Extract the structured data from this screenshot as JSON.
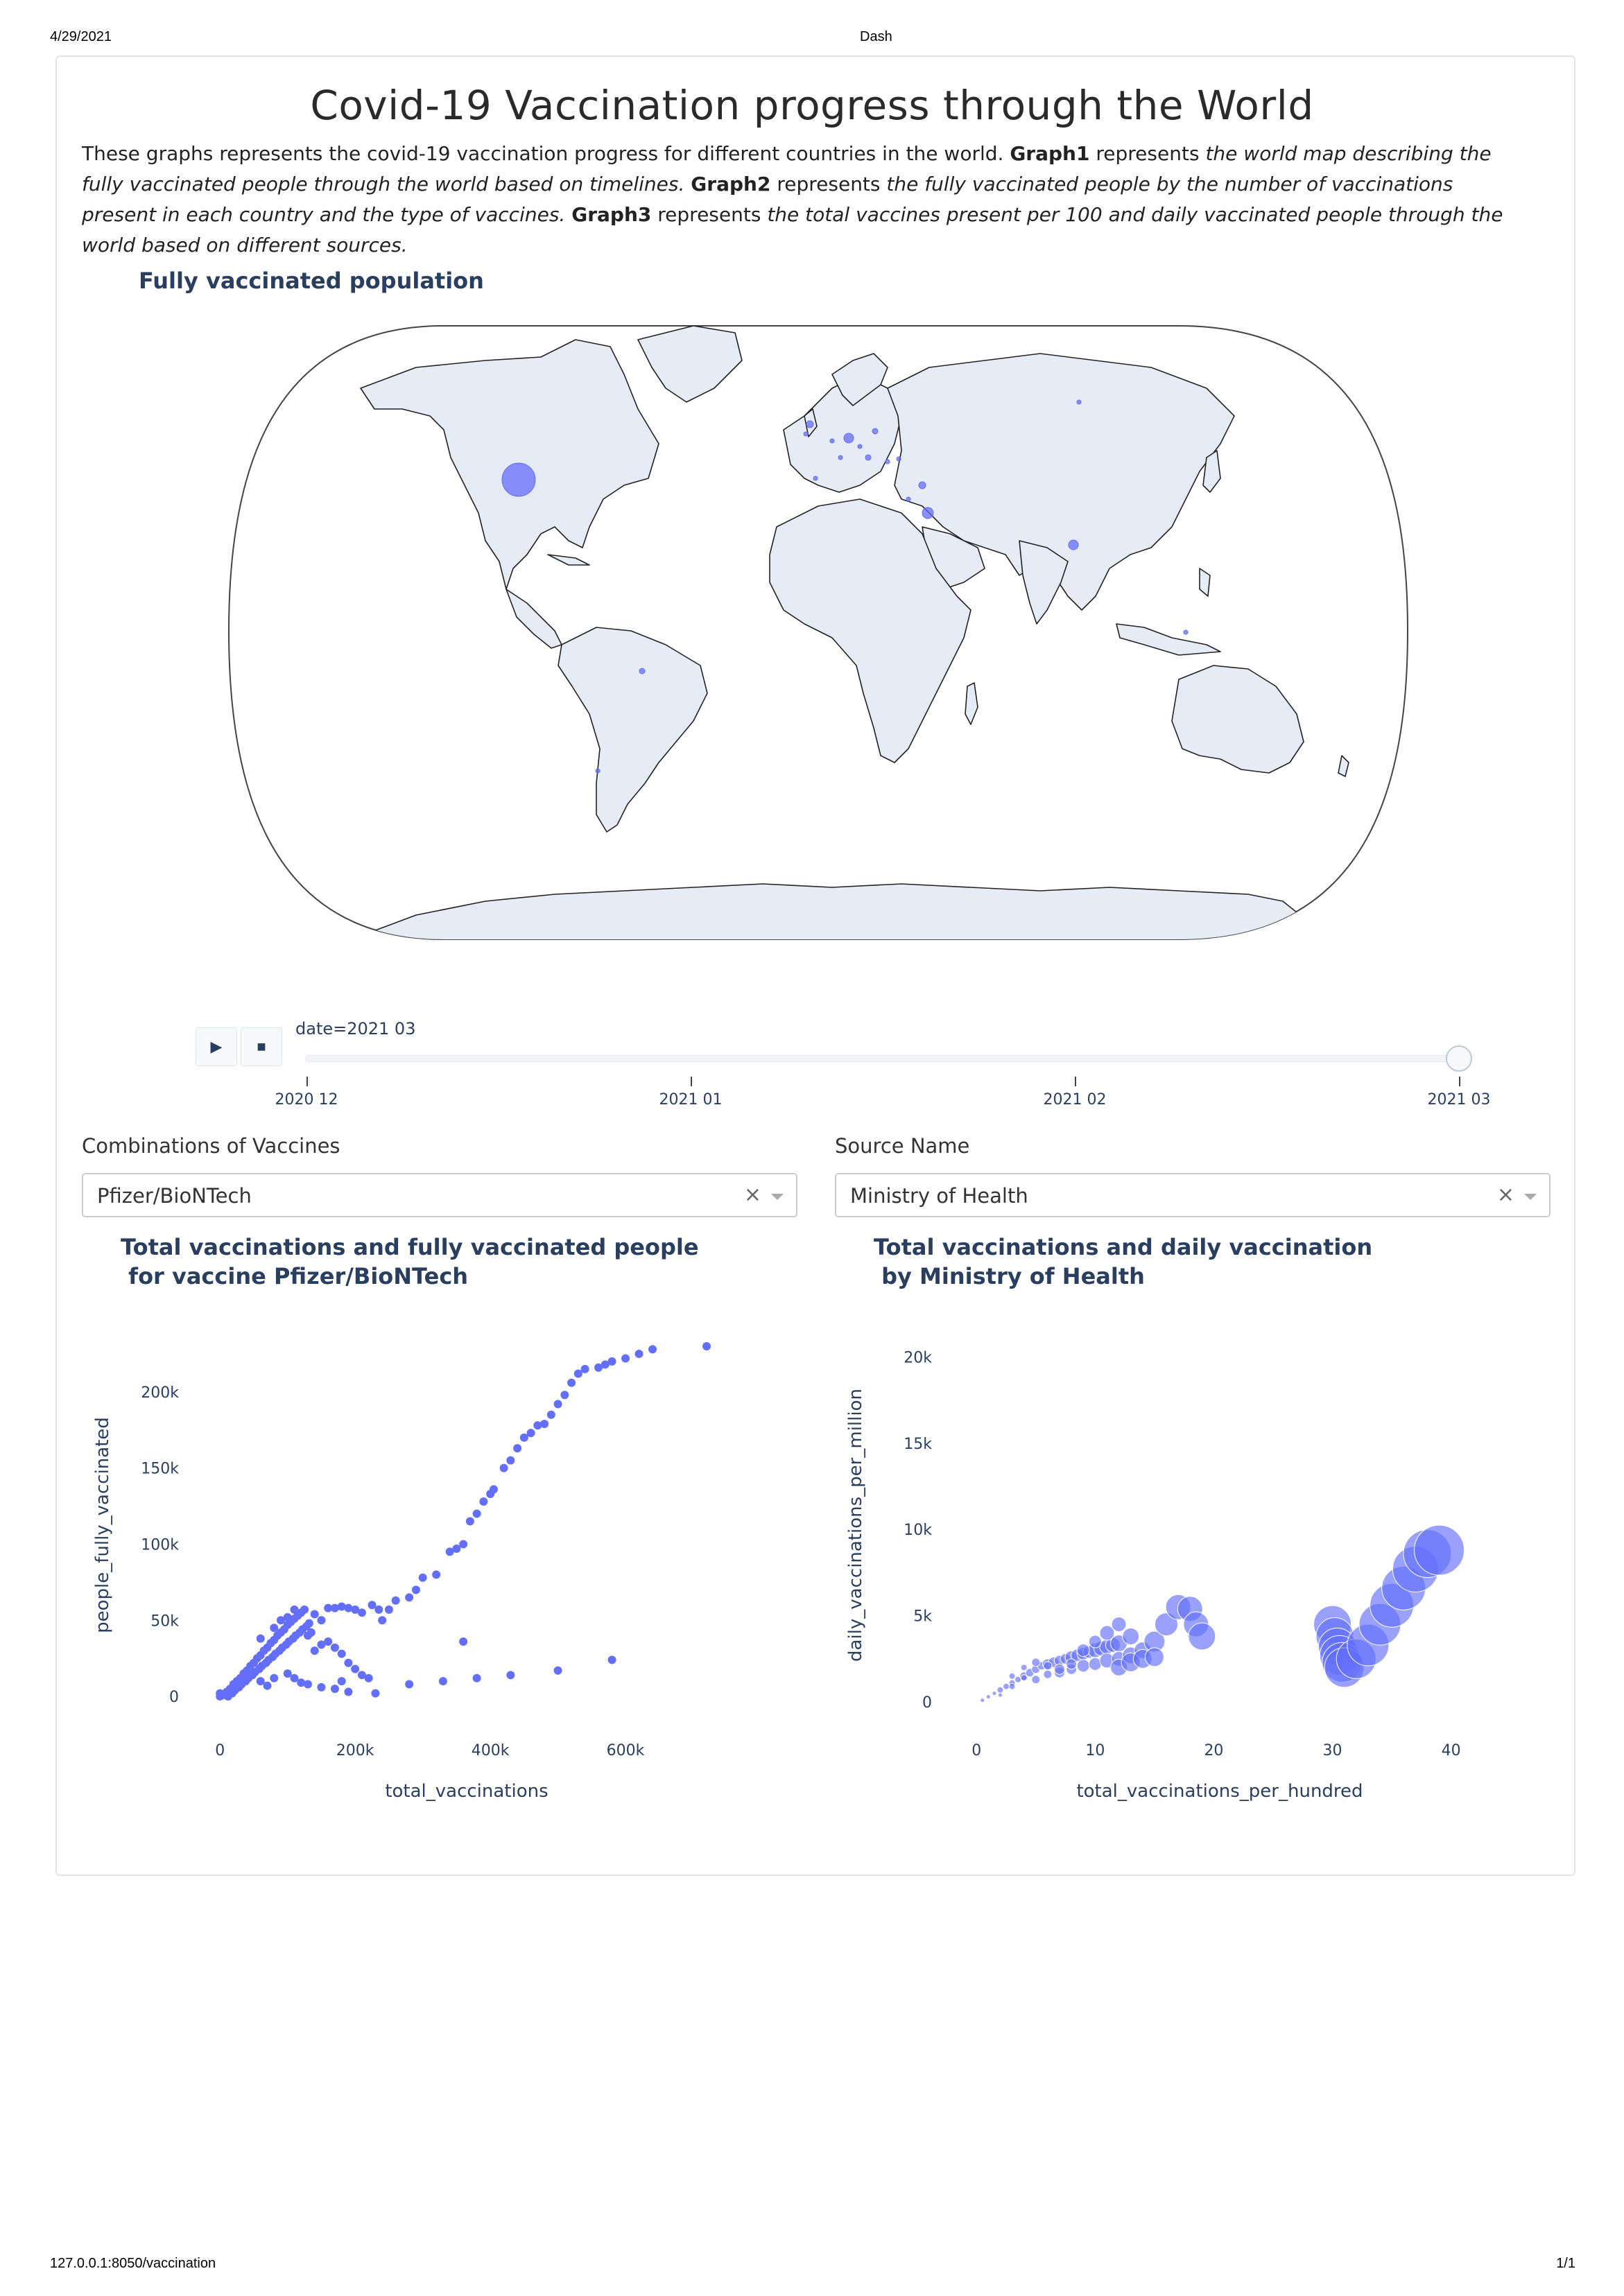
{
  "print": {
    "date": "4/29/2021",
    "tab_title": "Dash",
    "url": "127.0.0.1:8050/vaccination",
    "page": "1/1"
  },
  "header": {
    "title": "Covid-19 Vaccination progress through the World"
  },
  "intro": {
    "p1": "These graphs represents the covid-19 vaccination progress for different countries in the world. ",
    "g1": "Graph1",
    "p2": " represents ",
    "g1_desc": "the world map describing the fully vaccinated people through the world based on timelines.",
    "p3": " ",
    "g2": "Graph2",
    "p4": " represents ",
    "g2_desc": "the fully vaccinated people by the number of vaccinations present in each country and the type of vaccines.",
    "p5": " ",
    "g3": "Graph3",
    "p6": " represents ",
    "g3_desc": "the total vaccines present per 100 and daily vaccinated people through the world based on different sources."
  },
  "map": {
    "title": "Fully vaccinated population",
    "land_color": "#e5ecf6",
    "marker_color": "#636efa",
    "slider": {
      "current_label": "date=2021 03",
      "ticks": [
        "2020 12",
        "2021 01",
        "2021 02",
        "2021 03"
      ],
      "current_index": 3,
      "play_icon": "play-icon",
      "stop_icon": "stop-icon"
    }
  },
  "filters": {
    "vaccine": {
      "label": "Combinations of Vaccines",
      "value": "Pfizer/BioNTech",
      "clear": "×"
    },
    "source": {
      "label": "Source Name",
      "value": "Ministry of Health",
      "clear": "×"
    }
  },
  "chart_data": [
    {
      "type": "scatter",
      "title_line1": "Total vaccinations and fully vaccinated people",
      "title_line2": " for vaccine Pfizer/BioNTech",
      "xlabel": "total_vaccinations",
      "ylabel": "people_fully_vaccinated",
      "xlim": [
        -30000,
        760000
      ],
      "ylim": [
        -15000,
        240000
      ],
      "xticks": [
        {
          "v": 0,
          "t": "0"
        },
        {
          "v": 200000,
          "t": "200k"
        },
        {
          "v": 400000,
          "t": "400k"
        },
        {
          "v": 600000,
          "t": "600k"
        }
      ],
      "yticks": [
        {
          "v": 0,
          "t": "0"
        },
        {
          "v": 50000,
          "t": "50k"
        },
        {
          "v": 100000,
          "t": "100k"
        },
        {
          "v": 150000,
          "t": "150k"
        },
        {
          "v": 200000,
          "t": "200k"
        }
      ],
      "color": "#636efa",
      "points": [
        [
          0,
          0
        ],
        [
          5000,
          1000
        ],
        [
          10000,
          3000
        ],
        [
          15000,
          5000
        ],
        [
          20000,
          8000
        ],
        [
          25000,
          10000
        ],
        [
          30000,
          12000
        ],
        [
          35000,
          15000
        ],
        [
          40000,
          17000
        ],
        [
          45000,
          20000
        ],
        [
          50000,
          22000
        ],
        [
          55000,
          25000
        ],
        [
          60000,
          27000
        ],
        [
          65000,
          30000
        ],
        [
          70000,
          32000
        ],
        [
          75000,
          35000
        ],
        [
          80000,
          37000
        ],
        [
          85000,
          40000
        ],
        [
          90000,
          42000
        ],
        [
          95000,
          44000
        ],
        [
          100000,
          47000
        ],
        [
          105000,
          49000
        ],
        [
          110000,
          51000
        ],
        [
          115000,
          53000
        ],
        [
          120000,
          55000
        ],
        [
          125000,
          57000
        ],
        [
          130000,
          40000
        ],
        [
          135000,
          42000
        ],
        [
          0,
          2000
        ],
        [
          8000,
          1000
        ],
        [
          12000,
          0
        ],
        [
          18000,
          2000
        ],
        [
          22000,
          4000
        ],
        [
          28000,
          6000
        ],
        [
          32000,
          8000
        ],
        [
          38000,
          10000
        ],
        [
          42000,
          12000
        ],
        [
          48000,
          14000
        ],
        [
          52000,
          16000
        ],
        [
          58000,
          18000
        ],
        [
          62000,
          20000
        ],
        [
          68000,
          22000
        ],
        [
          72000,
          24000
        ],
        [
          78000,
          26000
        ],
        [
          82000,
          28000
        ],
        [
          88000,
          30000
        ],
        [
          92000,
          32000
        ],
        [
          98000,
          34000
        ],
        [
          102000,
          36000
        ],
        [
          108000,
          38000
        ],
        [
          112000,
          40000
        ],
        [
          118000,
          42000
        ],
        [
          122000,
          44000
        ],
        [
          128000,
          46000
        ],
        [
          132000,
          48000
        ],
        [
          60000,
          38000
        ],
        [
          80000,
          45000
        ],
        [
          90000,
          50000
        ],
        [
          100000,
          52000
        ],
        [
          110000,
          57000
        ],
        [
          140000,
          54000
        ],
        [
          150000,
          50000
        ],
        [
          160000,
          58000
        ],
        [
          170000,
          58000
        ],
        [
          180000,
          59000
        ],
        [
          190000,
          58000
        ],
        [
          200000,
          57000
        ],
        [
          210000,
          55000
        ],
        [
          225000,
          60000
        ],
        [
          235000,
          57000
        ],
        [
          240000,
          50000
        ],
        [
          250000,
          57000
        ],
        [
          260000,
          63000
        ],
        [
          280000,
          65000
        ],
        [
          290000,
          70000
        ],
        [
          300000,
          78000
        ],
        [
          320000,
          80000
        ],
        [
          340000,
          95000
        ],
        [
          350000,
          97000
        ],
        [
          360000,
          100000
        ],
        [
          370000,
          115000
        ],
        [
          380000,
          120000
        ],
        [
          390000,
          128000
        ],
        [
          400000,
          133000
        ],
        [
          405000,
          136000
        ],
        [
          420000,
          150000
        ],
        [
          430000,
          155000
        ],
        [
          440000,
          163000
        ],
        [
          450000,
          170000
        ],
        [
          460000,
          173000
        ],
        [
          470000,
          178000
        ],
        [
          480000,
          179000
        ],
        [
          490000,
          185000
        ],
        [
          500000,
          192000
        ],
        [
          510000,
          198000
        ],
        [
          520000,
          206000
        ],
        [
          530000,
          212000
        ],
        [
          540000,
          215000
        ],
        [
          560000,
          216000
        ],
        [
          570000,
          218000
        ],
        [
          580000,
          220000
        ],
        [
          600000,
          222000
        ],
        [
          620000,
          225000
        ],
        [
          640000,
          228000
        ],
        [
          720000,
          230000
        ],
        [
          100000,
          15000
        ],
        [
          110000,
          12000
        ],
        [
          120000,
          9000
        ],
        [
          130000,
          8000
        ],
        [
          150000,
          6000
        ],
        [
          170000,
          5000
        ],
        [
          190000,
          3000
        ],
        [
          230000,
          2000
        ],
        [
          280000,
          8000
        ],
        [
          330000,
          10000
        ],
        [
          380000,
          12000
        ],
        [
          430000,
          14000
        ],
        [
          500000,
          17000
        ],
        [
          580000,
          24000
        ],
        [
          360000,
          36000
        ],
        [
          60000,
          10000
        ],
        [
          70000,
          7000
        ],
        [
          80000,
          12000
        ],
        [
          140000,
          30000
        ],
        [
          150000,
          34000
        ],
        [
          160000,
          36000
        ],
        [
          170000,
          32000
        ],
        [
          180000,
          28000
        ],
        [
          190000,
          22000
        ],
        [
          200000,
          18000
        ],
        [
          210000,
          14000
        ],
        [
          220000,
          12000
        ],
        [
          180000,
          10000
        ]
      ]
    },
    {
      "type": "scatter",
      "title_line1": "Total vaccinations and daily vaccination",
      "title_line2": " by Ministry of Health",
      "xlabel": "total_vaccinations_per_hundred",
      "ylabel": "daily_vaccinations_per_million",
      "xlim": [
        -2,
        43
      ],
      "ylim": [
        -1000,
        21500
      ],
      "xticks": [
        {
          "v": 0,
          "t": "0"
        },
        {
          "v": 10,
          "t": "10"
        },
        {
          "v": 20,
          "t": "20"
        },
        {
          "v": 30,
          "t": "30"
        },
        {
          "v": 40,
          "t": "40"
        }
      ],
      "yticks": [
        {
          "v": 0,
          "t": "0"
        },
        {
          "v": 5000,
          "t": "5k"
        },
        {
          "v": 10000,
          "t": "10k"
        },
        {
          "v": 15000,
          "t": "15k"
        },
        {
          "v": 20000,
          "t": "20k"
        }
      ],
      "color": "#636efa",
      "points": [
        [
          0.5,
          100
        ],
        [
          1,
          300
        ],
        [
          1.5,
          500
        ],
        [
          2,
          700
        ],
        [
          2.5,
          900
        ],
        [
          3,
          1100
        ],
        [
          3.5,
          1300
        ],
        [
          4,
          1500
        ],
        [
          4.5,
          1700
        ],
        [
          5,
          1900
        ],
        [
          5.5,
          2100
        ],
        [
          6,
          2200
        ],
        [
          6.5,
          2300
        ],
        [
          7,
          2400
        ],
        [
          7.5,
          2500
        ],
        [
          8,
          2600
        ],
        [
          8.5,
          2700
        ],
        [
          9,
          2800
        ],
        [
          9.5,
          2900
        ],
        [
          10,
          3000
        ],
        [
          10.5,
          3100
        ],
        [
          11,
          3200
        ],
        [
          11.5,
          3300
        ],
        [
          12,
          3400
        ],
        [
          2,
          400
        ],
        [
          3,
          900
        ],
        [
          4,
          1400
        ],
        [
          5,
          1300
        ],
        [
          6,
          1600
        ],
        [
          7,
          1700
        ],
        [
          8,
          1900
        ],
        [
          9,
          2100
        ],
        [
          10,
          2200
        ],
        [
          11,
          2400
        ],
        [
          12,
          2500
        ],
        [
          13,
          2700
        ],
        [
          3,
          1500
        ],
        [
          4,
          2000
        ],
        [
          5,
          2300
        ],
        [
          6,
          2100
        ],
        [
          7,
          1900
        ],
        [
          8,
          2200
        ],
        [
          9,
          3000
        ],
        [
          10,
          3500
        ],
        [
          11,
          4000
        ],
        [
          12,
          4500
        ],
        [
          13,
          3800
        ],
        [
          14,
          3000
        ],
        [
          12,
          2000
        ],
        [
          13,
          2300
        ],
        [
          14,
          2500
        ],
        [
          15,
          3500
        ],
        [
          16,
          4500
        ],
        [
          17,
          5500
        ],
        [
          18,
          5400
        ],
        [
          18.5,
          4500
        ],
        [
          19,
          3800
        ],
        [
          15,
          2600
        ],
        [
          30,
          4500
        ],
        [
          30.2,
          3800
        ],
        [
          30.4,
          3200
        ],
        [
          30.6,
          2700
        ],
        [
          30.8,
          2300
        ],
        [
          31,
          2000
        ],
        [
          32,
          2500
        ],
        [
          33,
          3300
        ],
        [
          34,
          4500
        ],
        [
          35,
          5600
        ],
        [
          36,
          6600
        ],
        [
          37,
          7700
        ],
        [
          38,
          8600
        ],
        [
          39,
          8800
        ]
      ],
      "sizes": [
        2,
        2,
        2,
        3,
        3,
        3,
        3,
        4,
        4,
        4,
        4,
        5,
        5,
        5,
        5,
        6,
        6,
        6,
        6,
        7,
        7,
        7,
        7,
        8,
        2,
        3,
        3,
        4,
        4,
        5,
        5,
        6,
        6,
        7,
        7,
        8,
        3,
        3,
        4,
        4,
        5,
        5,
        6,
        6,
        7,
        7,
        8,
        8,
        8,
        9,
        9,
        10,
        11,
        12,
        12,
        12,
        13,
        9,
        18,
        18,
        18,
        19,
        19,
        19,
        19,
        20,
        20,
        21,
        21,
        22,
        23,
        24
      ]
    }
  ]
}
